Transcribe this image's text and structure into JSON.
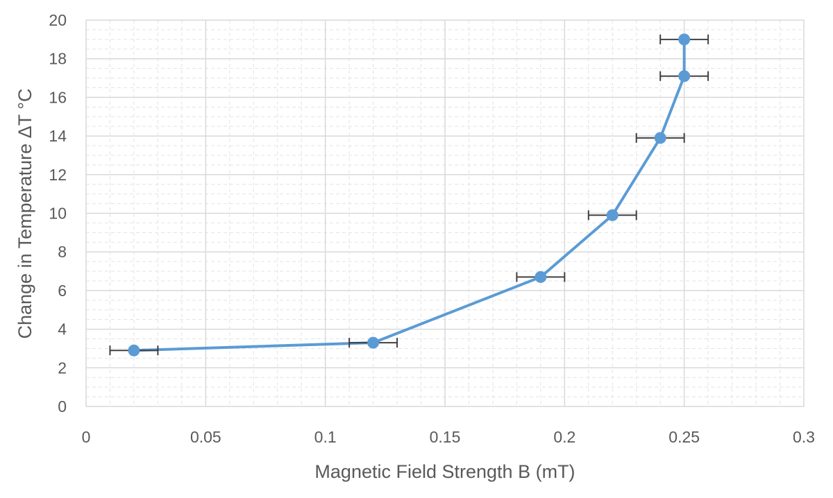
{
  "chart_data": {
    "type": "scatter",
    "title": "",
    "xlabel": "Magnetic Field Strength B (mT)",
    "ylabel": "Change in Temperature ΔT °C",
    "xlim": [
      0,
      0.3
    ],
    "ylim": [
      0,
      20
    ],
    "x_ticks": [
      "0",
      "0.05",
      "0.1",
      "0.15",
      "0.2",
      "0.25",
      "0.3"
    ],
    "y_ticks": [
      "0",
      "2",
      "4",
      "6",
      "8",
      "10",
      "12",
      "14",
      "16",
      "18",
      "20"
    ],
    "grid": true,
    "legend": "none",
    "series": [
      {
        "color": "#5B9BD5",
        "markers": true,
        "lines": true,
        "x": [
          0.02,
          0.12,
          0.19,
          0.22,
          0.24,
          0.25,
          0.25
        ],
        "y": [
          2.9,
          3.3,
          6.7,
          9.9,
          13.9,
          17.1,
          19.0
        ],
        "x_error": [
          0.01,
          0.01,
          0.01,
          0.01,
          0.01,
          0.01,
          0.01
        ]
      }
    ],
    "error_bar_color": "#404040"
  }
}
